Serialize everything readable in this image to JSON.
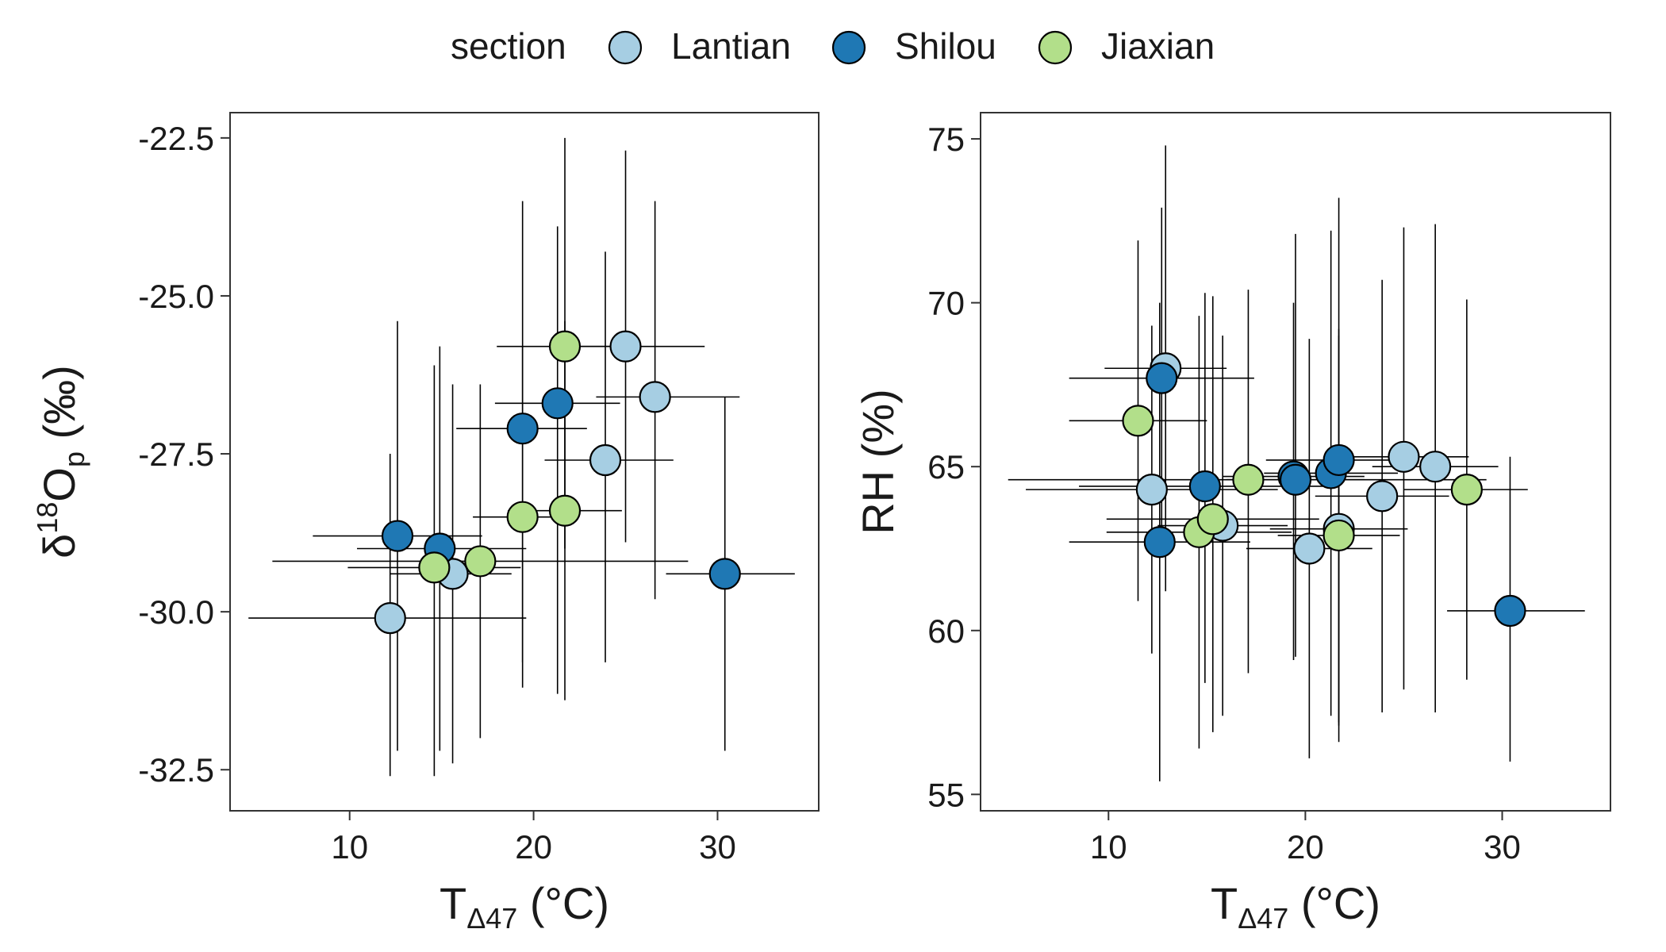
{
  "legend": {
    "title": "section",
    "items": [
      {
        "label": "Lantian",
        "color": "#a6cee3"
      },
      {
        "label": "Shilou",
        "color": "#1f78b4"
      },
      {
        "label": "Jiaxian",
        "color": "#b2df8a"
      }
    ]
  },
  "chart_data": [
    {
      "type": "scatter",
      "xlabel": "T_Δ47 (°C)",
      "ylabel": "δ18Op (‰)",
      "xlim": [
        3.5,
        35.5
      ],
      "ylim": [
        -33.15,
        -22.1
      ],
      "xticks": [
        10,
        20,
        30
      ],
      "yticks": [
        -22.5,
        -25.0,
        -27.5,
        -30.0,
        -32.5
      ],
      "ytick_labels": [
        "-22.5",
        "-25.0",
        "-27.5",
        "-30.0",
        "-32.5"
      ],
      "grid": false,
      "legend_position": "top",
      "series": [
        {
          "name": "Lantian",
          "points": [
            {
              "x": 25.0,
              "y": -25.8,
              "xmin": 21.8,
              "xmax": 29.3,
              "ymin": -28.9,
              "ymax": -22.7
            },
            {
              "x": 26.6,
              "y": -26.6,
              "xmin": 23.4,
              "xmax": 31.2,
              "ymin": -29.8,
              "ymax": -23.5
            },
            {
              "x": 23.9,
              "y": -27.6,
              "xmin": 20.6,
              "xmax": 27.6,
              "ymin": -30.8,
              "ymax": -24.3
            },
            {
              "x": 15.6,
              "y": -29.4,
              "xmin": 12.2,
              "xmax": 18.8,
              "ymin": -32.4,
              "ymax": -26.4
            },
            {
              "x": 12.2,
              "y": -30.1,
              "xmin": 4.5,
              "xmax": 19.6,
              "ymin": -32.6,
              "ymax": -27.5
            }
          ]
        },
        {
          "name": "Shilou",
          "points": [
            {
              "x": 21.3,
              "y": -26.7,
              "xmin": 17.9,
              "xmax": 24.7,
              "ymin": -31.3,
              "ymax": -23.9
            },
            {
              "x": 19.4,
              "y": -27.1,
              "xmin": 15.8,
              "xmax": 22.9,
              "ymin": -30.8,
              "ymax": -23.5
            },
            {
              "x": 12.6,
              "y": -28.8,
              "xmin": 8.0,
              "xmax": 17.2,
              "ymin": -32.2,
              "ymax": -25.4
            },
            {
              "x": 14.9,
              "y": -29.0,
              "xmin": 10.4,
              "xmax": 19.6,
              "ymin": -32.2,
              "ymax": -25.8
            },
            {
              "x": 30.4,
              "y": -29.4,
              "xmin": 27.2,
              "xmax": 34.2,
              "ymin": -32.2,
              "ymax": -26.6
            }
          ]
        },
        {
          "name": "Jiaxian",
          "points": [
            {
              "x": 21.7,
              "y": -25.8,
              "xmin": 18.0,
              "xmax": 25.3,
              "ymin": -29.0,
              "ymax": -22.5
            },
            {
              "x": 19.4,
              "y": -28.5,
              "xmin": 16.7,
              "xmax": 22.1,
              "ymin": -31.2,
              "ymax": -25.8
            },
            {
              "x": 21.7,
              "y": -28.4,
              "xmin": 18.6,
              "xmax": 24.8,
              "ymin": -31.4,
              "ymax": -25.4
            },
            {
              "x": 17.1,
              "y": -29.2,
              "xmin": 5.8,
              "xmax": 28.4,
              "ymin": -32.0,
              "ymax": -26.4
            },
            {
              "x": 14.6,
              "y": -29.3,
              "xmin": 9.9,
              "xmax": 19.3,
              "ymin": -32.6,
              "ymax": -26.1
            }
          ]
        }
      ]
    },
    {
      "type": "scatter",
      "xlabel": "T_Δ47 (°C)",
      "ylabel": "RH (%)",
      "xlim": [
        3.5,
        35.5
      ],
      "ylim": [
        54.5,
        75.8
      ],
      "xticks": [
        10,
        20,
        30
      ],
      "yticks": [
        55,
        60,
        65,
        70,
        75
      ],
      "ytick_labels": [
        "55",
        "60",
        "65",
        "70",
        "75"
      ],
      "grid": false,
      "legend_position": "top",
      "series": [
        {
          "name": "Lantian",
          "points": [
            {
              "x": 12.9,
              "y": 68.0,
              "xmin": 9.8,
              "xmax": 16.0,
              "ymin": 61.2,
              "ymax": 74.8
            },
            {
              "x": 12.2,
              "y": 64.3,
              "xmin": 5.8,
              "xmax": 18.6,
              "ymin": 59.3,
              "ymax": 69.3
            },
            {
              "x": 15.8,
              "y": 63.2,
              "xmin": 12.5,
              "xmax": 19.1,
              "ymin": 57.4,
              "ymax": 69.0
            },
            {
              "x": 20.2,
              "y": 62.5,
              "xmin": 17.0,
              "xmax": 23.4,
              "ymin": 56.1,
              "ymax": 68.9
            },
            {
              "x": 21.7,
              "y": 63.1,
              "xmin": 18.2,
              "xmax": 25.2,
              "ymin": 57.2,
              "ymax": 69.0
            },
            {
              "x": 23.9,
              "y": 64.1,
              "xmin": 20.5,
              "xmax": 27.3,
              "ymin": 57.5,
              "ymax": 70.7
            },
            {
              "x": 25.0,
              "y": 65.3,
              "xmin": 21.7,
              "xmax": 28.3,
              "ymin": 58.2,
              "ymax": 72.3
            },
            {
              "x": 26.6,
              "y": 65.0,
              "xmin": 23.4,
              "xmax": 29.8,
              "ymin": 57.5,
              "ymax": 72.4
            }
          ]
        },
        {
          "name": "Shilou",
          "points": [
            {
              "x": 12.7,
              "y": 67.7,
              "xmin": 8.0,
              "xmax": 17.4,
              "ymin": 62.5,
              "ymax": 72.9
            },
            {
              "x": 12.6,
              "y": 62.7,
              "xmin": 8.0,
              "xmax": 17.2,
              "ymin": 55.4,
              "ymax": 70.0
            },
            {
              "x": 14.9,
              "y": 64.4,
              "xmin": 8.5,
              "xmax": 21.3,
              "ymin": 58.4,
              "ymax": 70.3
            },
            {
              "x": 19.4,
              "y": 64.7,
              "xmin": 15.8,
              "xmax": 23.0,
              "ymin": 59.1,
              "ymax": 70.0
            },
            {
              "x": 19.5,
              "y": 64.6,
              "xmin": 16.0,
              "xmax": 23.0,
              "ymin": 59.2,
              "ymax": 72.1
            },
            {
              "x": 21.3,
              "y": 64.8,
              "xmin": 17.9,
              "xmax": 24.7,
              "ymin": 57.4,
              "ymax": 72.2
            },
            {
              "x": 21.7,
              "y": 65.2,
              "xmin": 18.0,
              "xmax": 25.3,
              "ymin": 57.1,
              "ymax": 73.2
            },
            {
              "x": 30.4,
              "y": 60.6,
              "xmin": 27.2,
              "xmax": 34.2,
              "ymin": 56.0,
              "ymax": 65.3
            }
          ]
        },
        {
          "name": "Jiaxian",
          "points": [
            {
              "x": 11.5,
              "y": 66.4,
              "xmin": 8.0,
              "xmax": 15.0,
              "ymin": 60.9,
              "ymax": 71.9
            },
            {
              "x": 17.1,
              "y": 64.6,
              "xmin": 4.9,
              "xmax": 29.2,
              "ymin": 58.7,
              "ymax": 70.4
            },
            {
              "x": 14.6,
              "y": 63.0,
              "xmin": 9.9,
              "xmax": 19.3,
              "ymin": 56.4,
              "ymax": 69.6
            },
            {
              "x": 15.3,
              "y": 63.4,
              "xmin": 9.9,
              "xmax": 20.7,
              "ymin": 56.9,
              "ymax": 70.2
            },
            {
              "x": 21.7,
              "y": 62.9,
              "xmin": 18.6,
              "xmax": 24.8,
              "ymin": 56.6,
              "ymax": 69.2
            },
            {
              "x": 28.2,
              "y": 64.3,
              "xmin": 25.0,
              "xmax": 31.3,
              "ymin": 58.5,
              "ymax": 70.1
            }
          ]
        }
      ]
    }
  ]
}
